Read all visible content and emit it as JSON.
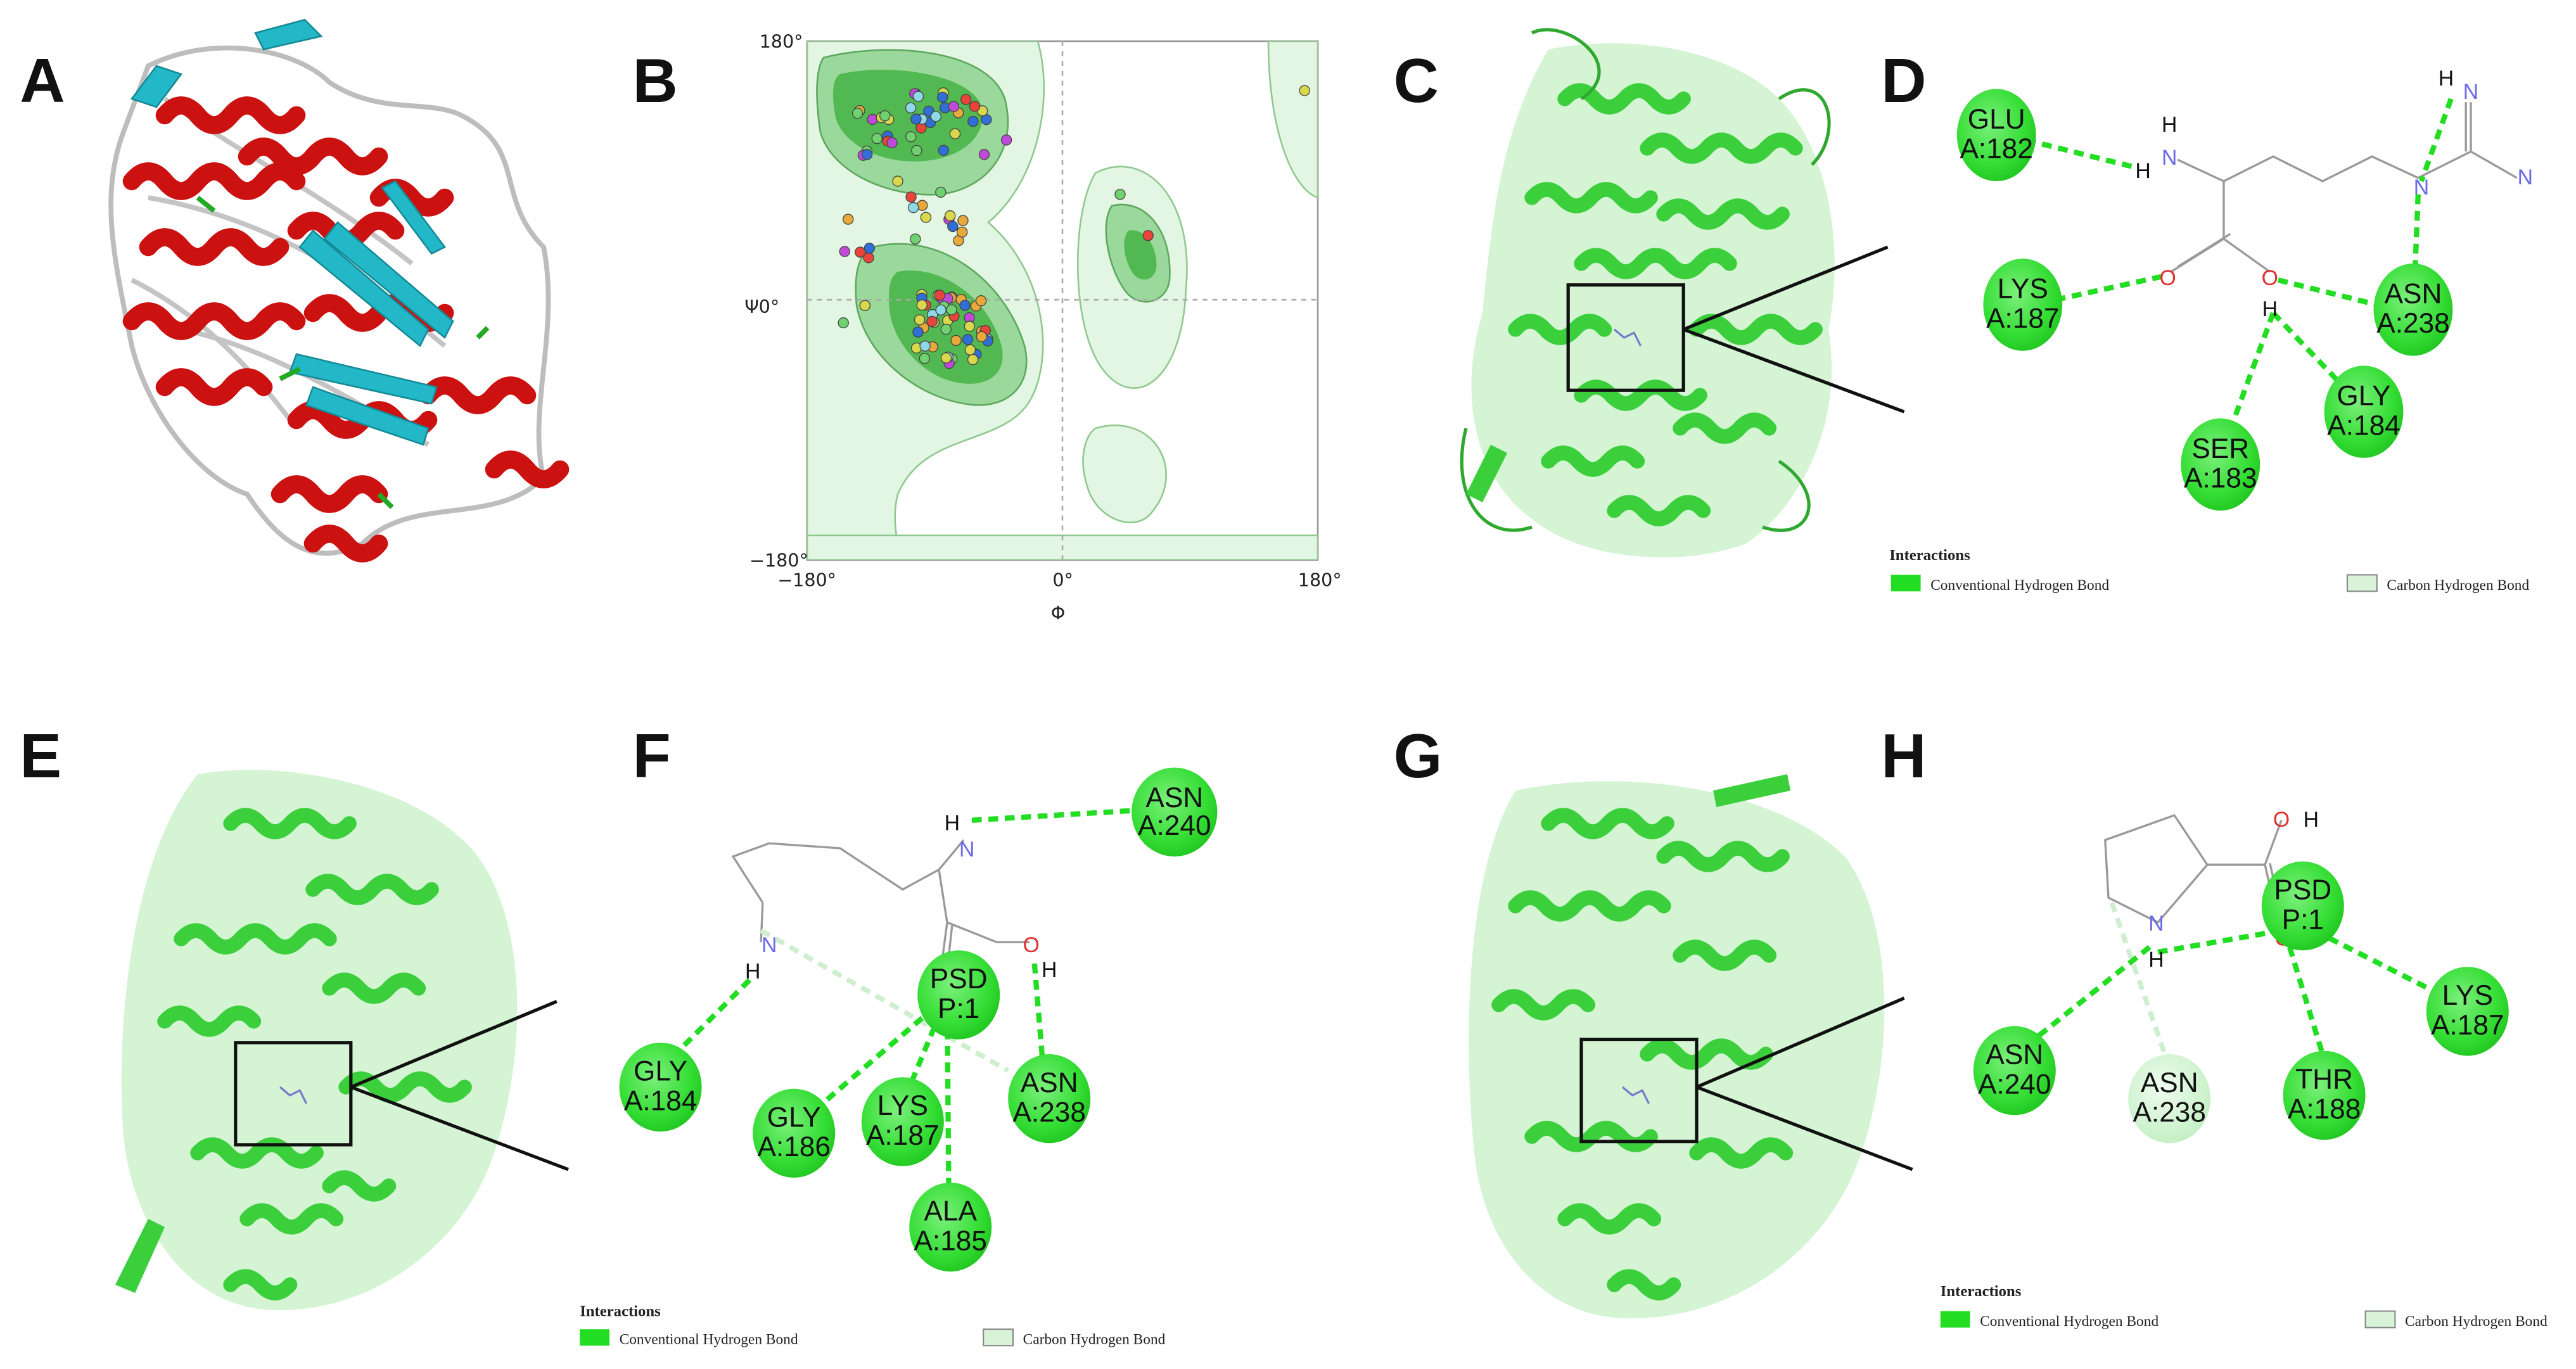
{
  "panels": {
    "A": {
      "label": "A"
    },
    "B": {
      "label": "B"
    },
    "C": {
      "label": "C"
    },
    "D": {
      "label": "D"
    },
    "E": {
      "label": "E"
    },
    "F": {
      "label": "F"
    },
    "G": {
      "label": "G"
    },
    "H": {
      "label": "H"
    }
  },
  "ramachandran": {
    "y_top": "180°",
    "y_mid": "Ψ0°",
    "y_bottom": "−180°",
    "x_left": "−180°",
    "x_mid": "0°",
    "x_right": "180°",
    "x_axis": "Φ"
  },
  "colors": {
    "hbond": "#22dd22",
    "carbon_hbond": "#cfeecf",
    "residue": "#3fe33f",
    "residue_light": "#c9f2c9",
    "helix": "#cc1111",
    "strand": "#22b8c8",
    "cartoon_green": "#3ccf3c"
  },
  "atoms": {
    "H": "H",
    "N": "N",
    "O": "O",
    "OH": "O",
    "HO": "H"
  },
  "panel_D": {
    "residues": [
      {
        "name": "GLU",
        "id": "A:182"
      },
      {
        "name": "LYS",
        "id": "A:187"
      },
      {
        "name": "ASN",
        "id": "A:238"
      },
      {
        "name": "GLY",
        "id": "A:184"
      },
      {
        "name": "SER",
        "id": "A:183"
      }
    ],
    "legend": {
      "title": "Interactions",
      "item1": "Conventional Hydrogen Bond",
      "item2": "Carbon Hydrogen Bond"
    }
  },
  "panel_F": {
    "residues": [
      {
        "name": "ASN",
        "id": "A:240"
      },
      {
        "name": "PSD",
        "id": "P:1"
      },
      {
        "name": "GLY",
        "id": "A:184"
      },
      {
        "name": "GLY",
        "id": "A:186"
      },
      {
        "name": "LYS",
        "id": "A:187"
      },
      {
        "name": "ASN",
        "id": "A:238"
      },
      {
        "name": "ALA",
        "id": "A:185"
      }
    ],
    "legend": {
      "title": "Interactions",
      "item1": "Conventional Hydrogen Bond",
      "item2": "Carbon Hydrogen Bond"
    }
  },
  "panel_H": {
    "residues": [
      {
        "name": "PSD",
        "id": "P:1"
      },
      {
        "name": "LYS",
        "id": "A:187"
      },
      {
        "name": "ASN",
        "id": "A:240"
      },
      {
        "name": "ASN",
        "id": "A:238"
      },
      {
        "name": "THR",
        "id": "A:188"
      }
    ],
    "legend": {
      "title": "Interactions",
      "item1": "Conventional Hydrogen Bond",
      "item2": "Carbon Hydrogen Bond"
    }
  }
}
